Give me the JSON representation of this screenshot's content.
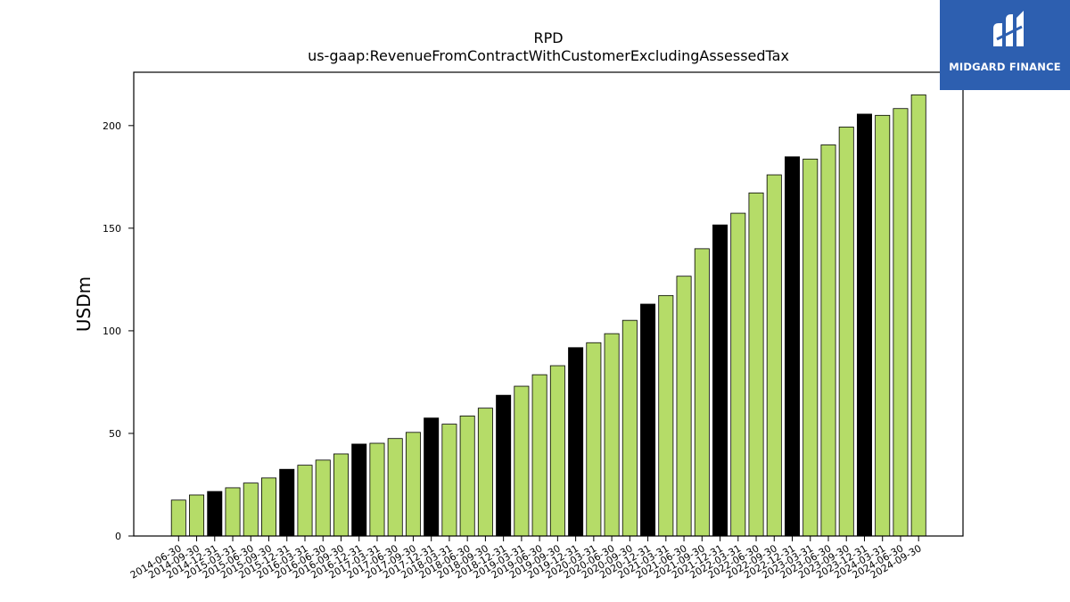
{
  "logo": {
    "text": "MIDGARD FINANCE"
  },
  "colors": {
    "default_bar": "#b5dc68",
    "highlight_bar": "#000000",
    "logo_bg": "#2d5fb0"
  },
  "chart_data": {
    "type": "bar",
    "title": "RPD",
    "subtitle": "us-gaap:RevenueFromContractWithCustomerExcludingAssessedTax",
    "xlabel": "",
    "ylabel": "USDm",
    "ylim": [
      0,
      226
    ],
    "yticks": [
      0,
      50,
      100,
      150,
      200
    ],
    "grid": false,
    "categories": [
      "2014-06-30",
      "2014-09-30",
      "2014-12-31",
      "2015-03-31",
      "2015-06-30",
      "2015-09-30",
      "2015-12-31",
      "2016-03-31",
      "2016-06-30",
      "2016-09-30",
      "2016-12-31",
      "2017-03-31",
      "2017-06-30",
      "2017-09-30",
      "2017-12-31",
      "2018-03-31",
      "2018-06-30",
      "2018-09-30",
      "2018-12-31",
      "2019-03-31",
      "2019-06-30",
      "2019-09-30",
      "2019-12-31",
      "2020-03-31",
      "2020-06-30",
      "2020-09-30",
      "2020-12-31",
      "2021-03-31",
      "2021-06-30",
      "2021-09-30",
      "2021-12-31",
      "2022-03-31",
      "2022-06-30",
      "2022-09-30",
      "2022-12-31",
      "2023-03-31",
      "2023-06-30",
      "2023-09-30",
      "2023-12-31",
      "2024-03-31",
      "2024-06-30",
      "2024-09-30"
    ],
    "values": [
      17.5,
      20,
      21.7,
      23.5,
      25.8,
      28.3,
      32.5,
      34.5,
      37,
      40,
      44.8,
      45.2,
      47.5,
      50.5,
      57.5,
      54.5,
      58.5,
      62.3,
      68.6,
      73,
      78.6,
      83,
      91.8,
      94.2,
      98.6,
      105.1,
      113,
      117.2,
      126.6,
      140,
      151.6,
      157.3,
      167.2,
      176,
      184.8,
      183.7,
      190.6,
      199.3,
      205.6,
      205,
      208.3,
      215
    ],
    "highlight": [
      false,
      false,
      true,
      false,
      false,
      false,
      true,
      false,
      false,
      false,
      true,
      false,
      false,
      false,
      true,
      false,
      false,
      false,
      true,
      false,
      false,
      false,
      true,
      false,
      false,
      false,
      true,
      false,
      false,
      false,
      true,
      false,
      false,
      false,
      true,
      false,
      false,
      false,
      true,
      false,
      false,
      false
    ]
  }
}
